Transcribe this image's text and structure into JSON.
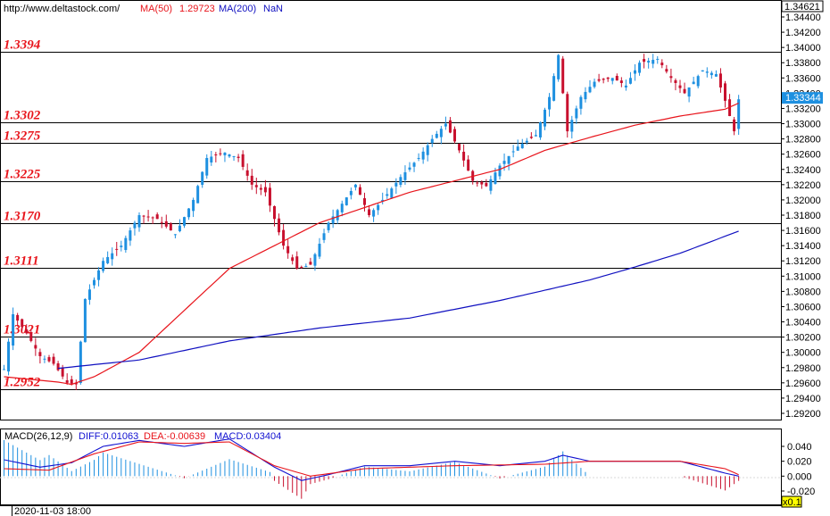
{
  "header": {
    "url": "http://www.deltastock.com/",
    "ma50_label": "MA(50)",
    "ma50_value": "1.29723",
    "ma200_label": "MA(200)",
    "ma200_value": "NaN"
  },
  "price_axis": {
    "top_label": "1.34621",
    "current_price": "1.33344",
    "ticks": [
      "1.34400",
      "1.34200",
      "1.34000",
      "1.33800",
      "1.33600",
      "1.33400",
      "1.33200",
      "1.33000",
      "1.32800",
      "1.32600",
      "1.32400",
      "1.32200",
      "1.32000",
      "1.31800",
      "1.31600",
      "1.31400",
      "1.31200",
      "1.31000",
      "1.30800",
      "1.30600",
      "1.30400",
      "1.30200",
      "1.30000",
      "1.29800",
      "1.29600",
      "1.29400",
      "1.29200"
    ]
  },
  "levels": [
    "1.3394",
    "1.3302",
    "1.3275",
    "1.3225",
    "1.3170",
    "1.3111",
    "1.3021",
    "1.2952"
  ],
  "macd_panel": {
    "title": "MACD(26,12,9)",
    "diff_label": "DIFF:0.01063",
    "dea_label": "DEA:-0.00639",
    "macd_label": "MACD:0.03404",
    "ticks": [
      "0.040",
      "0.020",
      "0.000",
      "-0.020"
    ],
    "scale_label": "x0.1"
  },
  "footer": {
    "date": "2020-11-03 18:00"
  },
  "colors": {
    "up": "#1e90e0",
    "down": "#c8102e",
    "ma50": "#e8141b",
    "ma200": "#1010c0",
    "level": "#000000"
  },
  "chart_data": [
    {
      "type": "candlestick",
      "title": "",
      "ylim": [
        1.2905,
        1.3462
      ],
      "levels": [
        1.3394,
        1.3302,
        1.3275,
        1.3225,
        1.317,
        1.3111,
        1.3021,
        1.2952
      ],
      "last_price": 1.33344,
      "grid": false,
      "series": [
        {
          "name": "MA(50)",
          "anchors": [
            [
              0,
              1.2968
            ],
            [
              12,
              1.2961
            ],
            [
              15,
              1.2958
            ],
            [
              20,
              1.2968
            ],
            [
              30,
              1.3
            ],
            [
              40,
              1.3055
            ],
            [
              50,
              1.311
            ],
            [
              60,
              1.314
            ],
            [
              70,
              1.317
            ],
            [
              80,
              1.319
            ],
            [
              90,
              1.321
            ],
            [
              100,
              1.3225
            ],
            [
              110,
              1.324
            ],
            [
              120,
              1.3265
            ],
            [
              130,
              1.3282
            ],
            [
              140,
              1.3298
            ],
            [
              150,
              1.331
            ],
            [
              160,
              1.3319
            ],
            [
              163,
              1.3327
            ]
          ]
        },
        {
          "name": "MA(200)",
          "anchors": [
            [
              12,
              1.2979
            ],
            [
              30,
              1.299
            ],
            [
              50,
              1.3015
            ],
            [
              70,
              1.3032
            ],
            [
              90,
              1.3045
            ],
            [
              110,
              1.3068
            ],
            [
              130,
              1.3095
            ],
            [
              140,
              1.3112
            ],
            [
              150,
              1.313
            ],
            [
              163,
              1.3159
            ]
          ]
        }
      ]
    },
    {
      "type": "macd",
      "title": "MACD(26,12,9)",
      "ylim": [
        -0.03,
        0.05
      ],
      "series": [
        {
          "name": "DIFF",
          "anchors": [
            [
              0,
              0.022
            ],
            [
              8,
              0.012
            ],
            [
              15,
              0.018
            ],
            [
              22,
              0.04
            ],
            [
              30,
              0.048
            ],
            [
              40,
              0.04
            ],
            [
              50,
              0.05
            ],
            [
              60,
              0.012
            ],
            [
              66,
              -0.006
            ],
            [
              72,
              0.002
            ],
            [
              80,
              0.014
            ],
            [
              90,
              0.014
            ],
            [
              100,
              0.02
            ],
            [
              110,
              0.014
            ],
            [
              120,
              0.02
            ],
            [
              124,
              0.028
            ],
            [
              130,
              0.02
            ],
            [
              140,
              0.02
            ],
            [
              150,
              0.02
            ],
            [
              160,
              0.004
            ],
            [
              163,
              0.0
            ]
          ]
        },
        {
          "name": "DEA",
          "anchors": [
            [
              0,
              0.01
            ],
            [
              10,
              0.008
            ],
            [
              20,
              0.03
            ],
            [
              30,
              0.046
            ],
            [
              40,
              0.044
            ],
            [
              50,
              0.046
            ],
            [
              60,
              0.014
            ],
            [
              68,
              0.0
            ],
            [
              80,
              0.01
            ],
            [
              100,
              0.014
            ],
            [
              120,
              0.016
            ],
            [
              130,
              0.02
            ],
            [
              150,
              0.02
            ],
            [
              160,
              0.01
            ],
            [
              163,
              0.002
            ]
          ]
        }
      ]
    }
  ]
}
